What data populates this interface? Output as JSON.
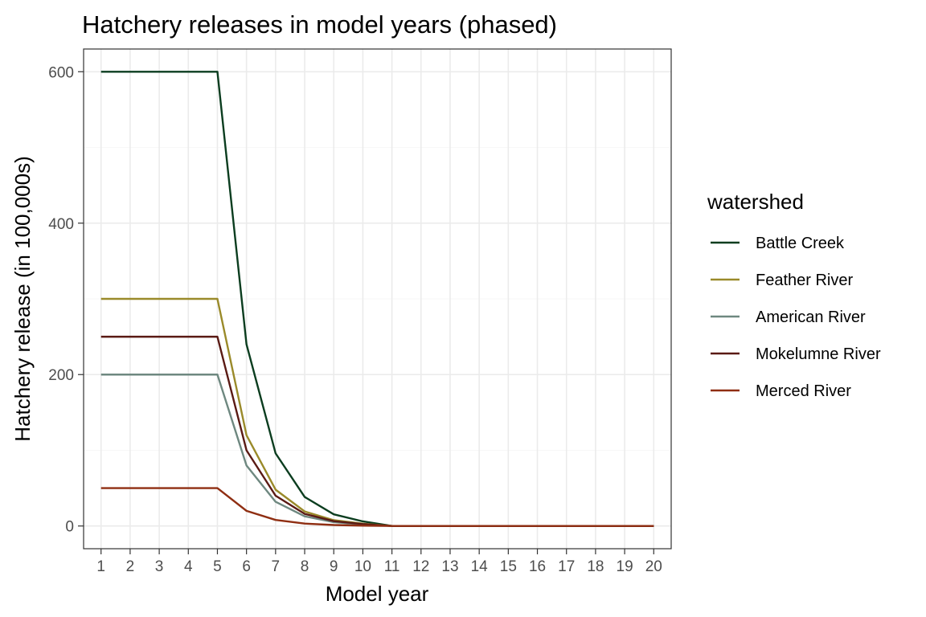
{
  "chart_data": {
    "type": "line",
    "title": "Hatchery releases in model years (phased)",
    "xlabel": "Model year",
    "ylabel": "Hatchery release (in 100,000s)",
    "x": [
      1,
      2,
      3,
      4,
      5,
      6,
      7,
      8,
      9,
      10,
      11,
      12,
      13,
      14,
      15,
      16,
      17,
      18,
      19,
      20
    ],
    "xlim": [
      0.4,
      20.6
    ],
    "ylim": [
      -30,
      630
    ],
    "xticks": [
      "1",
      "2",
      "3",
      "4",
      "5",
      "6",
      "7",
      "8",
      "9",
      "10",
      "11",
      "12",
      "13",
      "14",
      "15",
      "16",
      "17",
      "18",
      "19",
      "20"
    ],
    "yticks": [
      0,
      200,
      400,
      600
    ],
    "yticks_minor": [
      100,
      300,
      500
    ],
    "grid": true,
    "legend": {
      "title": "watershed",
      "position": "right"
    },
    "series": [
      {
        "name": "Battle Creek",
        "color": "#0b3d1f",
        "values": [
          600,
          600,
          600,
          600,
          600,
          240,
          96,
          38.4,
          15.4,
          6.1,
          0,
          0,
          0,
          0,
          0,
          0,
          0,
          0,
          0,
          0
        ]
      },
      {
        "name": "Feather River",
        "color": "#9a8a2a",
        "values": [
          300,
          300,
          300,
          300,
          300,
          120,
          48,
          19.2,
          7.7,
          3.1,
          0,
          0,
          0,
          0,
          0,
          0,
          0,
          0,
          0,
          0
        ]
      },
      {
        "name": "American River",
        "color": "#6e8880",
        "values": [
          200,
          200,
          200,
          200,
          200,
          80,
          32,
          12.8,
          5.1,
          2.0,
          0,
          0,
          0,
          0,
          0,
          0,
          0,
          0,
          0,
          0
        ]
      },
      {
        "name": "Mokelumne River",
        "color": "#5a1a14",
        "values": [
          250,
          250,
          250,
          250,
          250,
          100,
          40,
          16,
          6.4,
          2.6,
          0,
          0,
          0,
          0,
          0,
          0,
          0,
          0,
          0,
          0
        ]
      },
      {
        "name": "Merced River",
        "color": "#8f2e12",
        "values": [
          50,
          50,
          50,
          50,
          50,
          20,
          8,
          3.2,
          1.3,
          0.5,
          0,
          0,
          0,
          0,
          0,
          0,
          0,
          0,
          0,
          0
        ]
      }
    ]
  }
}
